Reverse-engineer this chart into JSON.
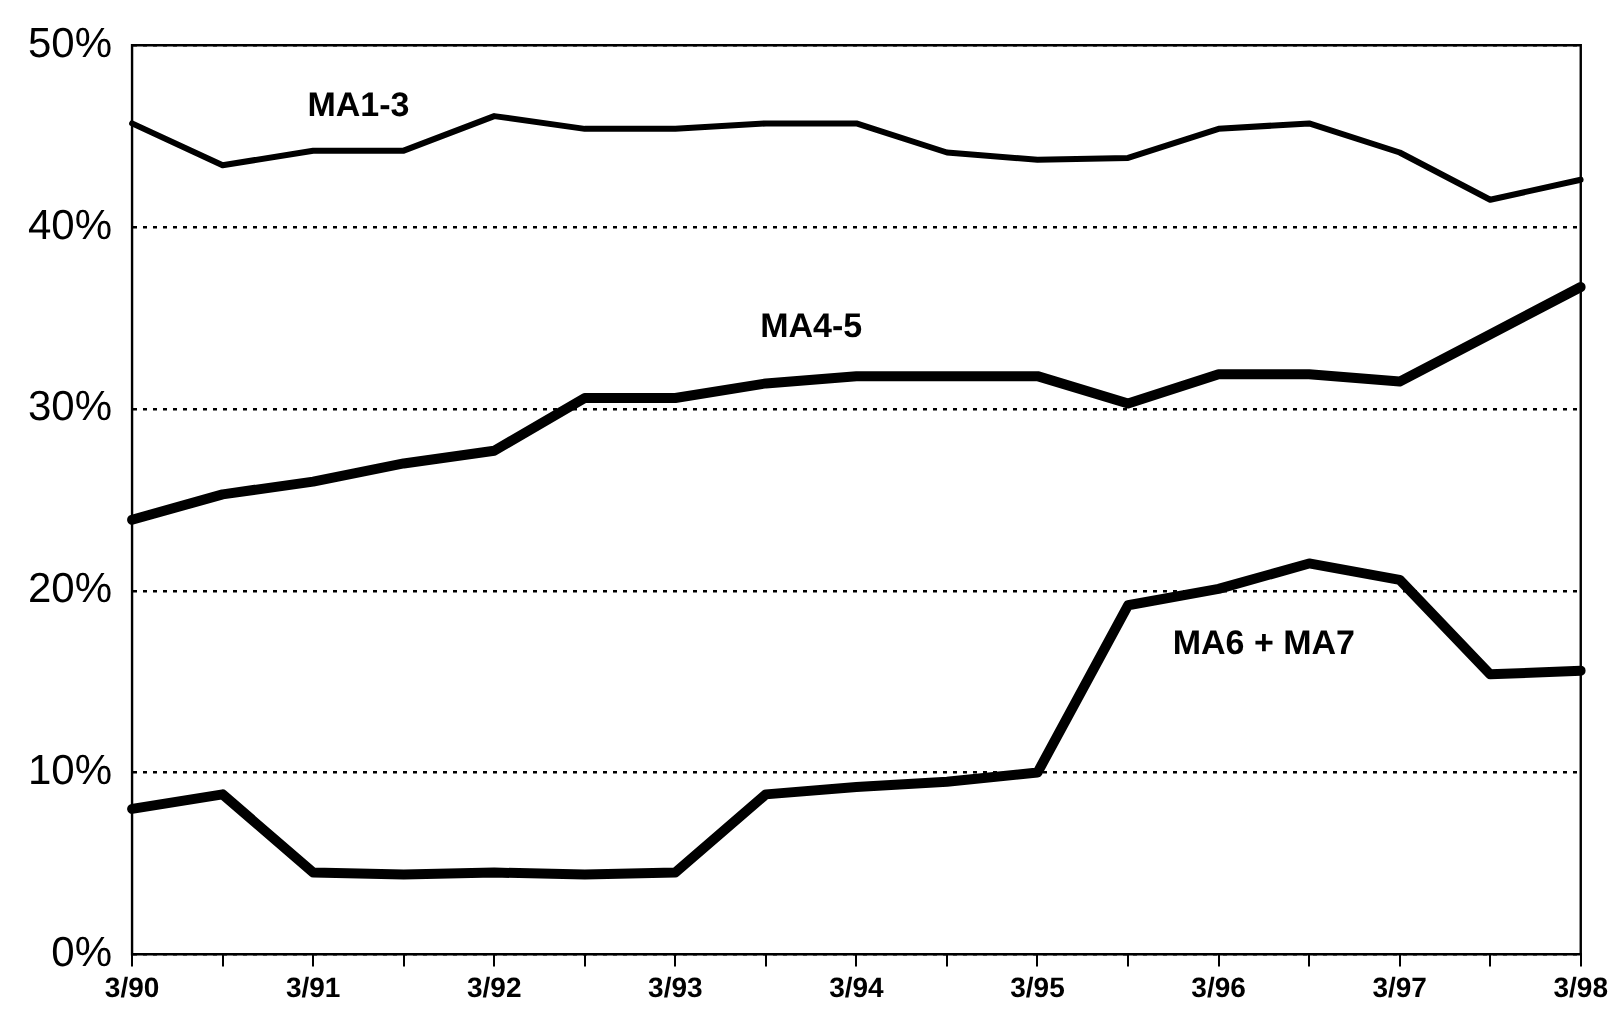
{
  "chart_data": {
    "type": "line",
    "categories": [
      "3/90",
      null,
      "3/91",
      null,
      "3/92",
      null,
      "3/93",
      null,
      "3/94",
      null,
      "3/95",
      null,
      "3/96",
      null,
      "3/97",
      null,
      "3/98"
    ],
    "series": [
      {
        "name": "MA1-3",
        "color": "#000000",
        "values": [
          45.7,
          43.4,
          44.2,
          44.2,
          46.1,
          45.4,
          45.4,
          45.7,
          45.7,
          44.1,
          43.7,
          43.8,
          45.4,
          45.7,
          44.1,
          41.5,
          42.6
        ]
      },
      {
        "name": "MA4-5",
        "color": "#000000",
        "values": [
          23.9,
          25.3,
          26.0,
          27.0,
          27.7,
          30.6,
          30.6,
          31.4,
          31.8,
          31.8,
          31.8,
          30.3,
          31.9,
          31.9,
          31.5,
          34.1,
          36.7
        ]
      },
      {
        "name": "MA6 + MA7",
        "color": "#000000",
        "values": [
          8.0,
          8.8,
          4.5,
          4.4,
          4.5,
          4.4,
          4.5,
          8.8,
          9.2,
          9.5,
          10.0,
          19.2,
          20.1,
          21.5,
          20.6,
          15.4,
          15.6
        ]
      }
    ],
    "ylim": [
      0,
      50
    ],
    "yticks": [
      {
        "value": 0,
        "label": "0%"
      },
      {
        "value": 10,
        "label": "10%"
      },
      {
        "value": 20,
        "label": "20%"
      },
      {
        "value": 30,
        "label": "30%"
      },
      {
        "value": 40,
        "label": "40%"
      },
      {
        "value": 50,
        "label": "50%"
      }
    ],
    "grid": "y",
    "legend": false,
    "marker": "none",
    "line_style": "solid"
  }
}
